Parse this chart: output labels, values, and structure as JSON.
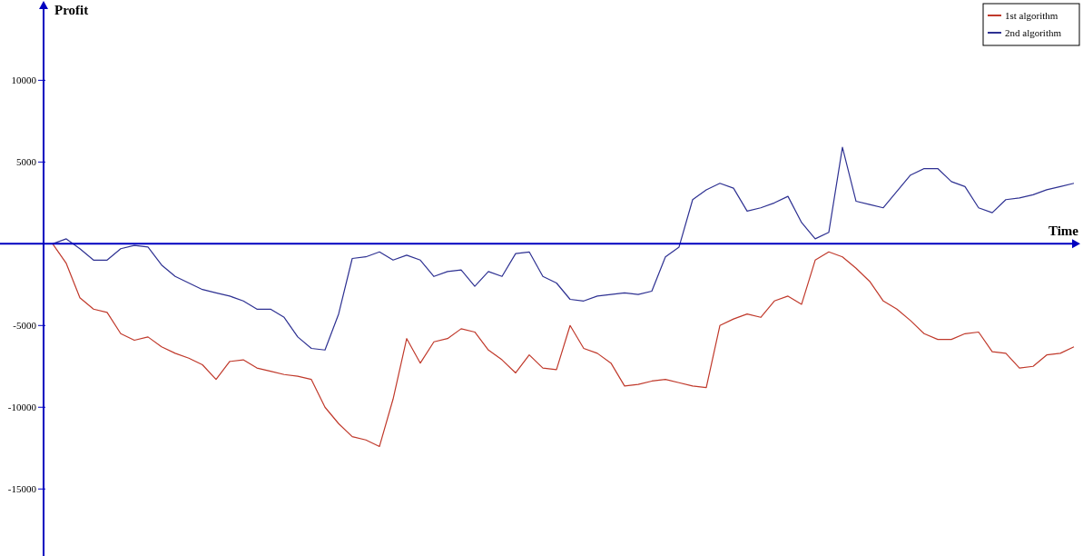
{
  "chart_data": {
    "type": "line",
    "xlabel": "Time",
    "ylabel": "Profit",
    "categories": [
      null,
      null,
      null,
      null,
      null,
      null,
      null,
      null,
      null,
      null,
      null,
      null,
      null,
      null,
      null,
      null,
      null,
      null,
      null,
      null,
      null,
      null,
      null,
      null,
      null,
      null,
      null,
      null,
      null,
      null,
      null,
      null,
      null,
      null,
      null,
      null,
      null,
      null,
      null,
      null,
      null,
      null,
      null,
      null,
      null,
      null,
      null,
      null,
      null,
      null,
      null,
      null,
      null,
      null,
      null,
      null,
      null,
      null,
      null,
      null,
      null,
      null,
      null,
      null,
      null,
      null,
      null,
      null,
      null,
      null,
      null,
      null,
      null,
      null,
      null,
      null
    ],
    "series": [
      {
        "name": "1st algorithm",
        "color": "#c0392b",
        "values": [
          0,
          -1200,
          -3300,
          -4000,
          -4200,
          -5500,
          -5900,
          -5700,
          -6300,
          -6700,
          -7000,
          -7400,
          -8300,
          -7200,
          -7100,
          -7600,
          -7800,
          -8000,
          -8100,
          -8300,
          -10000,
          -11000,
          -11800,
          -12000,
          -12400,
          -9500,
          -5800,
          -7300,
          -6000,
          -5800,
          -5200,
          -5400,
          -6500,
          -7100,
          -7900,
          -6800,
          -7600,
          -7700,
          -5000,
          -6400,
          -6700,
          -7300,
          -8700,
          -8600,
          -8400,
          -8300,
          -8500,
          -8700,
          -8800,
          -5000,
          -4600,
          -4300,
          -4500,
          -3500,
          -3200,
          -3700,
          -1000,
          -500,
          -800,
          -1500,
          -2300,
          -3500,
          -4000,
          -4700,
          -5500,
          -5850,
          -5850,
          -5500,
          -5400,
          -6600,
          -6700,
          -7600,
          -7500,
          -6800,
          -6700,
          -6300
        ]
      },
      {
        "name": "2nd algorithm",
        "color": "#2e3192",
        "values": [
          0,
          300,
          -300,
          -1000,
          -1000,
          -300,
          -100,
          -200,
          -1300,
          -2000,
          -2400,
          -2800,
          -3000,
          -3200,
          -3500,
          -4000,
          -4000,
          -4500,
          -5700,
          -6400,
          -6500,
          -4300,
          -900,
          -800,
          -500,
          -1000,
          -700,
          -1000,
          -2000,
          -1700,
          -1600,
          -2600,
          -1700,
          -2000,
          -600,
          -500,
          -2000,
          -2400,
          -3400,
          -3500,
          -3200,
          -3100,
          -3000,
          -3100,
          -2900,
          -800,
          -200,
          2700,
          3300,
          3700,
          3400,
          2000,
          2200,
          2500,
          2900,
          1300,
          300,
          700,
          5900,
          2600,
          2400,
          2200,
          3200,
          4200,
          4600,
          4600,
          3800,
          3500,
          2200,
          1900,
          2700,
          2800,
          3000,
          3300,
          3500,
          3700
        ]
      }
    ],
    "ylim": [
      -19100,
      14800
    ],
    "yticks": [
      -15000,
      -10000,
      -5000,
      5000,
      10000
    ],
    "ref_lines": [
      {
        "axis": "y",
        "value": 0,
        "color": "#0000c0"
      }
    ],
    "tick_labels": "y",
    "grid": false,
    "legend": "top right",
    "line_style": "solid",
    "marker": "none"
  }
}
